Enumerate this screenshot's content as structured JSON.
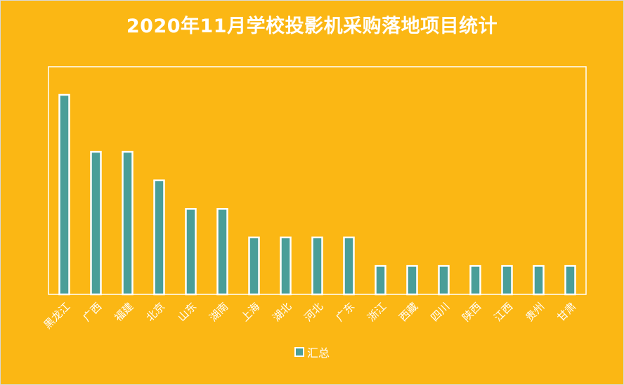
{
  "colors": {
    "background": "#FBB714",
    "bar_fill": "#4A9E98",
    "bar_stroke": "#FFFFFF",
    "text": "#FFFFFF"
  },
  "chart_data": {
    "type": "bar",
    "title": "2020年11月学校投影机采购落地项目统计",
    "categories": [
      "黑龙江",
      "广西",
      "福建",
      "北京",
      "山东",
      "湖南",
      "上海",
      "湖北",
      "河北",
      "广东",
      "浙江",
      "西藏",
      "四川",
      "陕西",
      "江西",
      "贵州",
      "甘肃"
    ],
    "series": [
      {
        "name": "汇总",
        "values": [
          7,
          5,
          5,
          4,
          3,
          3,
          2,
          2,
          2,
          2,
          1,
          1,
          1,
          1,
          1,
          1,
          1
        ]
      }
    ],
    "ylim": [
      0,
      7
    ],
    "grid": false,
    "legend": "bottom",
    "xlabel": "",
    "ylabel": ""
  }
}
